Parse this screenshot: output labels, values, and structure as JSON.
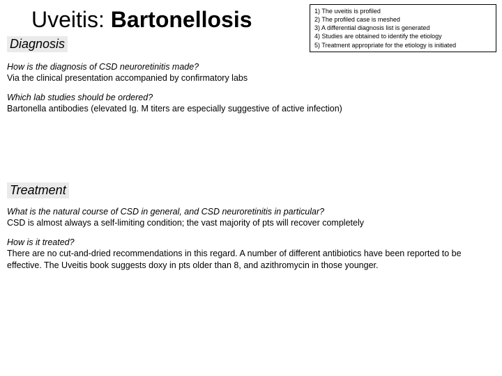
{
  "title": {
    "prefix": "Uveitis: ",
    "bold": "Bartonellosis"
  },
  "steps": {
    "s1": "1) The uveitis is profiled",
    "s2": "2) The profiled case is meshed",
    "s3": "3) A differential diagnosis list is generated",
    "s4": "4) Studies are obtained to identify the etiology",
    "s5": "5) Treatment appropriate for the etiology is initiated"
  },
  "labels": {
    "diagnosis": "Diagnosis",
    "treatment": "Treatment"
  },
  "blocks": {
    "q1": "How is the diagnosis of CSD neuroretinitis made?",
    "a1": "Via the clinical presentation accompanied by confirmatory labs",
    "q2": "Which lab studies should be ordered?",
    "a2": "Bartonella antibodies (elevated  Ig. M  titers are especially suggestive of active infection)",
    "q3": "What is the natural course of CSD in general, and CSD neuroretinitis in particular?",
    "a3": "CSD is almost always a self-limiting condition; the vast majority of pts will recover completely",
    "q4": "How is it treated?",
    "a4": "There are no cut-and-dried recommendations in this regard. A number of different antibiotics have been reported to be effective. The Uveitis book suggests  doxy  in pts older than 8, and  azithromycin  in those younger."
  }
}
